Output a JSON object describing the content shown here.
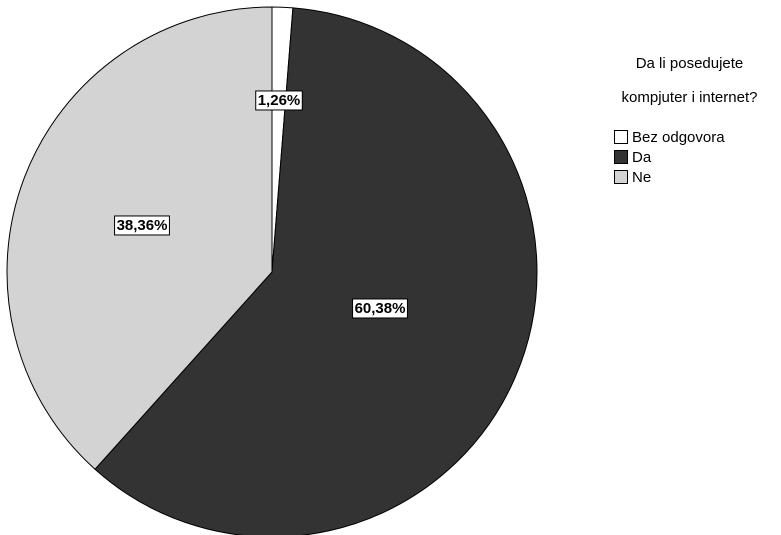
{
  "chart_data": {
    "type": "pie",
    "legend_title_lines": [
      "Da li posedujete",
      "kompjuter i internet?"
    ],
    "legend_placement": "top-right",
    "slices": [
      {
        "name": "Bez odgovora",
        "value": 1.26,
        "label": "1,26%",
        "color": "#ffffff"
      },
      {
        "name": "Da",
        "value": 60.38,
        "label": "60,38%",
        "color": "#333333"
      },
      {
        "name": "Ne",
        "value": 38.36,
        "label": "38,36%",
        "color": "#d3d3d3"
      }
    ],
    "start_angle_deg": 0,
    "direction": "clockwise"
  }
}
